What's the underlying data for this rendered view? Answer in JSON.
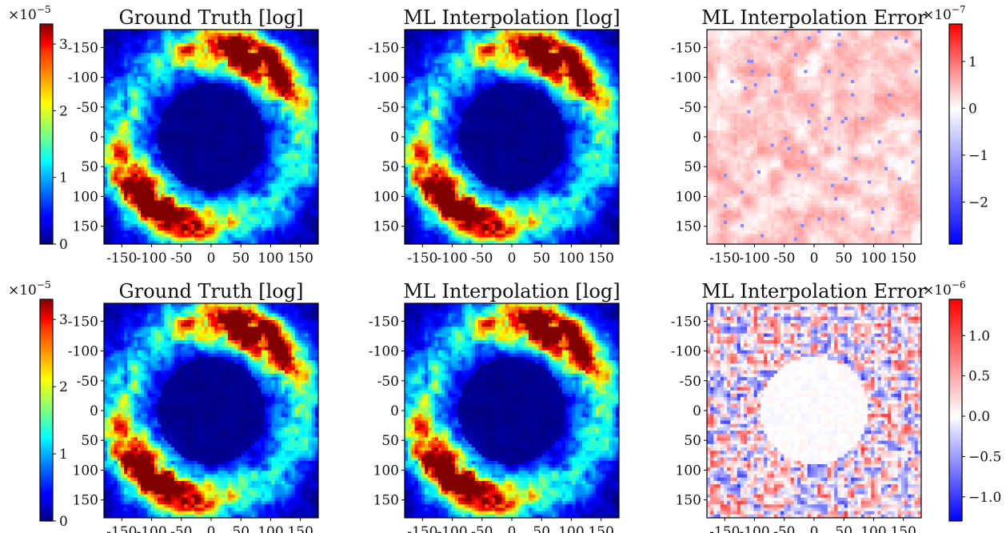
{
  "chart_data": [
    {
      "type": "heatmap",
      "row": 0,
      "col": 0,
      "kind": "jet",
      "title": "Ground Truth [log]",
      "x_ticks": [
        "-150",
        "-100",
        "-50",
        "0",
        "50",
        "100",
        "150"
      ],
      "y_ticks": [
        "-150",
        "-100",
        "-50",
        "0",
        "50",
        "100",
        "150"
      ],
      "xlim": [
        -180,
        180
      ],
      "ylim": [
        -180,
        180
      ],
      "y_inverted": true,
      "colorbar": {
        "side": "left",
        "colormap": "jet",
        "min": 0,
        "max": 3.3,
        "ticks": [
          "0",
          "1",
          "2",
          "3"
        ],
        "tick_values": [
          0,
          1,
          2,
          3
        ],
        "multiplier_base": "×10",
        "multiplier_exp": "−5"
      }
    },
    {
      "type": "heatmap",
      "row": 0,
      "col": 1,
      "kind": "jet",
      "title": "ML Interpolation [log]",
      "x_ticks": [
        "-150",
        "-100",
        "-50",
        "0",
        "50",
        "100",
        "150"
      ],
      "y_ticks": [
        "-150",
        "-100",
        "-50",
        "0",
        "50",
        "100",
        "150"
      ],
      "xlim": [
        -180,
        180
      ],
      "ylim": [
        -180,
        180
      ],
      "y_inverted": true
    },
    {
      "type": "heatmap",
      "row": 0,
      "col": 2,
      "kind": "err1",
      "title": "ML Interpolation Error",
      "x_ticks": [
        "-150",
        "-100",
        "-50",
        "0",
        "50",
        "100",
        "150"
      ],
      "y_ticks": [
        "-150",
        "-100",
        "-50",
        "0",
        "50",
        "100",
        "150"
      ],
      "xlim": [
        -180,
        180
      ],
      "ylim": [
        -180,
        180
      ],
      "y_inverted": true,
      "colorbar": {
        "side": "right",
        "colormap": "bwr",
        "min": -2.9,
        "max": 1.8,
        "ticks": [
          "−2",
          "−1",
          "0",
          "1"
        ],
        "tick_values": [
          -2,
          -1,
          0,
          1
        ],
        "multiplier_base": "×10",
        "multiplier_exp": "−7"
      }
    },
    {
      "type": "heatmap",
      "row": 1,
      "col": 0,
      "kind": "jet",
      "title": "Ground Truth [log]",
      "x_ticks": [
        "-150",
        "-100",
        "-50",
        "0",
        "50",
        "100",
        "150"
      ],
      "y_ticks": [
        "-150",
        "-100",
        "-50",
        "0",
        "50",
        "100",
        "150"
      ],
      "xlim": [
        -180,
        180
      ],
      "ylim": [
        -180,
        180
      ],
      "y_inverted": true,
      "colorbar": {
        "side": "left",
        "colormap": "jet",
        "min": 0,
        "max": 3.3,
        "ticks": [
          "0",
          "1",
          "2",
          "3"
        ],
        "tick_values": [
          0,
          1,
          2,
          3
        ],
        "multiplier_base": "×10",
        "multiplier_exp": "−5"
      }
    },
    {
      "type": "heatmap",
      "row": 1,
      "col": 1,
      "kind": "jet",
      "title": "ML Interpolation [log]",
      "x_ticks": [
        "-150",
        "-100",
        "-50",
        "0",
        "50",
        "100",
        "150"
      ],
      "y_ticks": [
        "-150",
        "-100",
        "-50",
        "0",
        "50",
        "100",
        "150"
      ],
      "xlim": [
        -180,
        180
      ],
      "ylim": [
        -180,
        180
      ],
      "y_inverted": true
    },
    {
      "type": "heatmap",
      "row": 1,
      "col": 2,
      "kind": "err2",
      "title": "ML Interpolation Error",
      "x_ticks": [
        "-150",
        "-100",
        "-50",
        "0",
        "50",
        "100",
        "150"
      ],
      "y_ticks": [
        "-150",
        "-100",
        "-50",
        "0",
        "50",
        "100",
        "150"
      ],
      "xlim": [
        -180,
        180
      ],
      "ylim": [
        -180,
        180
      ],
      "y_inverted": true,
      "colorbar": {
        "side": "right",
        "colormap": "bwr",
        "min": -1.3,
        "max": 1.45,
        "ticks": [
          "−1.0",
          "−0.5",
          "0.0",
          "0.5",
          "1.0"
        ],
        "tick_values": [
          -1.0,
          -0.5,
          0.0,
          0.5,
          1.0
        ],
        "multiplier_base": "×10",
        "multiplier_exp": "−6"
      }
    }
  ]
}
